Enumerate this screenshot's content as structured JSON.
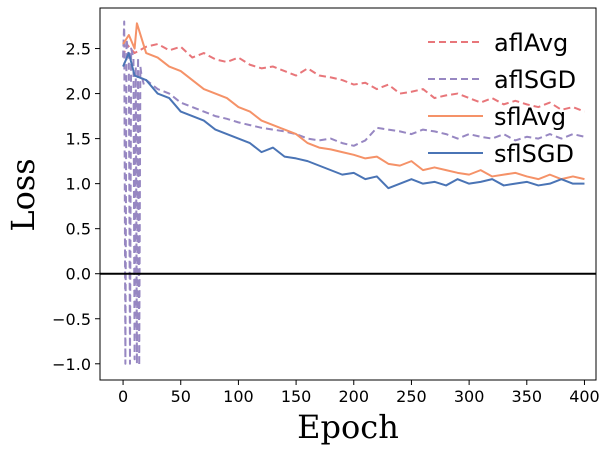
{
  "chart_data": {
    "type": "line",
    "title": "",
    "xlabel": "Epoch",
    "ylabel": "Loss",
    "xlim": [
      -20,
      410
    ],
    "ylim": [
      -1.18,
      2.95
    ],
    "xticks": [
      0,
      50,
      100,
      150,
      200,
      250,
      300,
      350,
      400
    ],
    "yticks": [
      -1.0,
      -0.5,
      0.0,
      0.5,
      1.0,
      1.5,
      2.0,
      2.5
    ],
    "ytick_labels": [
      "−1.0",
      "−0.5",
      "0.0",
      "0.5",
      "1.0",
      "1.5",
      "2.0",
      "2.5"
    ],
    "grid": false,
    "legend_position": "top-right",
    "reference_line": {
      "y": 0.0,
      "color": "#000000"
    },
    "series": [
      {
        "name": "aflAvg",
        "color": "#E8767A",
        "dash": "dashed",
        "x": [
          0,
          3,
          10,
          20,
          30,
          40,
          50,
          60,
          70,
          80,
          90,
          100,
          110,
          120,
          130,
          140,
          150,
          160,
          170,
          180,
          190,
          200,
          210,
          220,
          230,
          240,
          250,
          260,
          270,
          280,
          290,
          300,
          310,
          320,
          330,
          340,
          350,
          360,
          370,
          380,
          390,
          400
        ],
        "y": [
          2.4,
          2.55,
          2.45,
          2.52,
          2.55,
          2.48,
          2.52,
          2.4,
          2.45,
          2.38,
          2.35,
          2.4,
          2.32,
          2.28,
          2.3,
          2.25,
          2.2,
          2.28,
          2.2,
          2.18,
          2.15,
          2.1,
          2.12,
          2.05,
          2.1,
          2.0,
          2.02,
          2.05,
          1.95,
          1.98,
          2.0,
          1.95,
          1.9,
          1.95,
          1.88,
          1.92,
          1.88,
          1.85,
          1.9,
          1.82,
          1.85,
          1.8
        ]
      },
      {
        "name": "aflSGD",
        "color": "#9787C2",
        "dash": "dashed",
        "x": [
          0,
          1,
          2,
          3,
          5,
          6,
          7,
          9,
          10,
          11,
          12,
          13,
          14,
          15,
          16,
          18,
          20,
          30,
          40,
          50,
          60,
          70,
          80,
          90,
          100,
          110,
          120,
          130,
          140,
          150,
          160,
          170,
          180,
          190,
          200,
          210,
          220,
          230,
          240,
          250,
          260,
          270,
          280,
          290,
          300,
          310,
          320,
          330,
          340,
          350,
          360,
          370,
          380,
          390,
          400
        ],
        "y": [
          2.4,
          2.8,
          -1.0,
          2.6,
          2.4,
          -1.0,
          2.5,
          2.4,
          -0.95,
          2.3,
          -1.0,
          2.4,
          -1.02,
          2.3,
          2.2,
          2.1,
          2.15,
          2.05,
          2.0,
          1.9,
          1.85,
          1.8,
          1.75,
          1.72,
          1.68,
          1.65,
          1.62,
          1.6,
          1.58,
          1.55,
          1.5,
          1.48,
          1.5,
          1.45,
          1.42,
          1.48,
          1.62,
          1.6,
          1.58,
          1.55,
          1.6,
          1.58,
          1.55,
          1.5,
          1.55,
          1.52,
          1.5,
          1.55,
          1.48,
          1.52,
          1.5,
          1.55,
          1.5,
          1.55,
          1.52
        ]
      },
      {
        "name": "sflAvg",
        "color": "#F59268",
        "dash": "solid",
        "x": [
          0,
          5,
          10,
          12,
          20,
          30,
          40,
          50,
          60,
          70,
          80,
          90,
          100,
          110,
          120,
          130,
          140,
          150,
          160,
          170,
          180,
          190,
          200,
          210,
          220,
          230,
          240,
          250,
          260,
          270,
          280,
          290,
          300,
          310,
          320,
          330,
          340,
          350,
          360,
          370,
          380,
          390,
          400
        ],
        "y": [
          2.55,
          2.65,
          2.5,
          2.78,
          2.45,
          2.4,
          2.3,
          2.25,
          2.15,
          2.05,
          2.0,
          1.95,
          1.85,
          1.8,
          1.7,
          1.65,
          1.6,
          1.55,
          1.45,
          1.4,
          1.38,
          1.35,
          1.32,
          1.28,
          1.3,
          1.22,
          1.2,
          1.25,
          1.15,
          1.18,
          1.15,
          1.12,
          1.1,
          1.15,
          1.08,
          1.1,
          1.12,
          1.08,
          1.05,
          1.1,
          1.05,
          1.08,
          1.05
        ]
      },
      {
        "name": "sflSGD",
        "color": "#4A74B5",
        "dash": "solid",
        "x": [
          0,
          5,
          10,
          20,
          30,
          40,
          50,
          60,
          70,
          80,
          90,
          100,
          110,
          120,
          130,
          140,
          150,
          160,
          170,
          180,
          190,
          200,
          210,
          220,
          230,
          240,
          250,
          260,
          270,
          280,
          290,
          300,
          310,
          320,
          330,
          340,
          350,
          360,
          370,
          380,
          390,
          400
        ],
        "y": [
          2.3,
          2.45,
          2.2,
          2.15,
          2.0,
          1.95,
          1.8,
          1.75,
          1.7,
          1.6,
          1.55,
          1.5,
          1.45,
          1.35,
          1.4,
          1.3,
          1.28,
          1.25,
          1.2,
          1.15,
          1.1,
          1.12,
          1.05,
          1.08,
          0.95,
          1.0,
          1.05,
          1.0,
          1.02,
          0.98,
          1.05,
          1.0,
          1.02,
          1.05,
          0.98,
          1.0,
          1.02,
          0.98,
          1.0,
          1.05,
          1.0,
          1.0
        ]
      }
    ]
  }
}
